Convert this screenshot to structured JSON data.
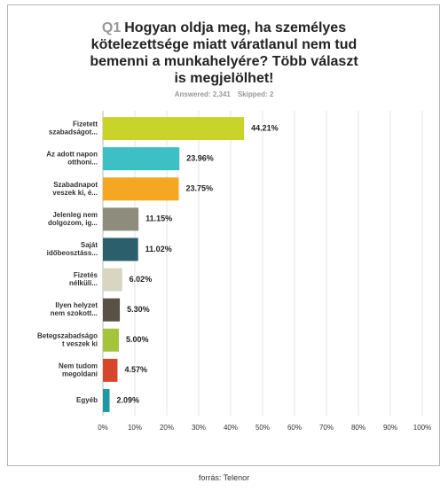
{
  "chart_data": {
    "type": "bar",
    "orientation": "horizontal",
    "q_number": "Q1",
    "title": "Hogyan oldja meg, ha személyes kötelezettsége miatt váratlanul nem tud bemenni a munkahelyére? Több választ is megjelölhet!",
    "answered": "Answered: 2,341",
    "skipped": "Skipped: 2",
    "categories": [
      "Fizetett\nszabadságot...",
      "Az adott napon\notthoni...",
      "Szabadnapot\nveszek ki, é...",
      "Jelenleg nem\ndolgozom, ig...",
      "Saját\nidőbeosztáss...",
      "Fizetés\nnélküli...",
      "Ilyen helyzet\nnem szokott...",
      "Betegszabadságo\nt veszek ki",
      "Nem tudom\nmegoldani",
      "Egyéb"
    ],
    "values": [
      44.21,
      23.96,
      23.75,
      11.15,
      11.02,
      6.02,
      5.3,
      5.0,
      4.57,
      2.09
    ],
    "value_labels": [
      "44.21%",
      "23.96%",
      "23.75%",
      "11.15%",
      "11.02%",
      "6.02%",
      "5.30%",
      "5.00%",
      "4.57%",
      "2.09%"
    ],
    "colors": [
      "#c9d42b",
      "#3dbfc6",
      "#f5a623",
      "#8e8c7d",
      "#2c5f6c",
      "#d9d5c3",
      "#575146",
      "#a6c33b",
      "#d4472a",
      "#1d9aa1"
    ],
    "xlim": [
      0,
      100
    ],
    "xticks": [
      {
        "value": 0,
        "label": "0%"
      },
      {
        "value": 10,
        "label": "10%"
      },
      {
        "value": 20,
        "label": "20%"
      },
      {
        "value": 30,
        "label": "30%"
      },
      {
        "value": 40,
        "label": "40%"
      },
      {
        "value": 50,
        "label": "50%"
      },
      {
        "value": 60,
        "label": "60%"
      },
      {
        "value": 70,
        "label": "70%"
      },
      {
        "value": 80,
        "label": "80%"
      },
      {
        "value": 90,
        "label": "90%"
      },
      {
        "value": 100,
        "label": "100%"
      }
    ],
    "grid": true,
    "source": "forrás: Telenor"
  }
}
